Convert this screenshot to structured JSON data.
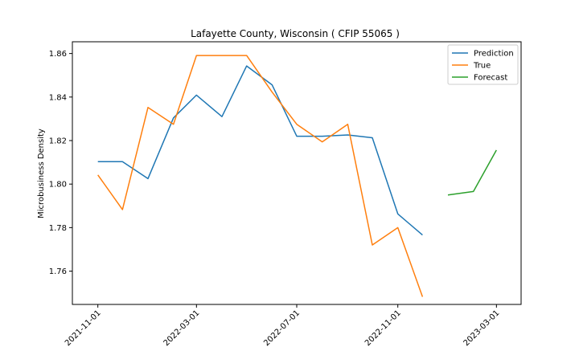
{
  "chart_data": {
    "type": "line",
    "title": "Lafayette County, Wisconsin ( CFIP 55065 )",
    "xlabel": "",
    "ylabel": "Microbusiness Density",
    "xlim": [
      "2021-10-01",
      "2023-03-31"
    ],
    "ylim": [
      1.7447,
      1.8654
    ],
    "x_ticks": [
      "2021-11-01",
      "2022-03-01",
      "2022-07-01",
      "2022-11-01",
      "2023-03-01"
    ],
    "y_ticks": [
      1.76,
      1.78,
      1.8,
      1.82,
      1.84,
      1.86
    ],
    "y_tick_labels": [
      "1.76",
      "1.78",
      "1.80",
      "1.82",
      "1.84",
      "1.86"
    ],
    "grid": false,
    "legend_position": "top-right",
    "series": [
      {
        "name": "Prediction",
        "color": "#1f77b4",
        "x": [
          "2021-11-01",
          "2021-12-01",
          "2022-01-01",
          "2022-02-01",
          "2022-03-01",
          "2022-04-01",
          "2022-05-01",
          "2022-06-01",
          "2022-07-01",
          "2022-08-01",
          "2022-09-01",
          "2022-10-01",
          "2022-11-01",
          "2022-12-01"
        ],
        "values": [
          1.8103,
          1.8103,
          1.8025,
          1.8304,
          1.8409,
          1.831,
          1.8543,
          1.8456,
          1.822,
          1.822,
          1.8226,
          1.8213,
          1.7863,
          1.7766
        ]
      },
      {
        "name": "True",
        "color": "#ff7f0e",
        "x": [
          "2021-11-01",
          "2021-12-01",
          "2022-01-01",
          "2022-02-01",
          "2022-03-01",
          "2022-04-01",
          "2022-05-01",
          "2022-06-01",
          "2022-07-01",
          "2022-08-01",
          "2022-09-01",
          "2022-10-01",
          "2022-11-01",
          "2022-12-01"
        ],
        "values": [
          1.8042,
          1.7883,
          1.8352,
          1.8275,
          1.8591,
          1.8591,
          1.8591,
          1.8423,
          1.8275,
          1.8194,
          1.8275,
          1.772,
          1.78,
          1.7482
        ]
      },
      {
        "name": "Forecast",
        "color": "#2ca02c",
        "x": [
          "2023-01-01",
          "2023-02-01",
          "2023-03-01"
        ],
        "values": [
          1.795,
          1.7966,
          1.8156
        ]
      }
    ]
  }
}
